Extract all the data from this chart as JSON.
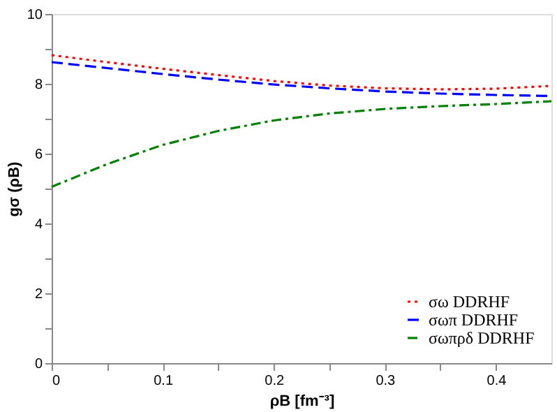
{
  "chart_data": {
    "type": "line",
    "xlabel": "ρB [fm⁻³]",
    "ylabel": "gσ (ρB)",
    "x": [
      0,
      0.05,
      0.1,
      0.15,
      0.2,
      0.25,
      0.3,
      0.35,
      0.4,
      0.45
    ],
    "xlim": [
      0,
      0.45
    ],
    "ylim": [
      0,
      10
    ],
    "xticks": [
      0,
      {
        "value": 0.05,
        "label": null
      },
      0.1,
      {
        "value": 0.15,
        "label": null
      },
      0.2,
      {
        "value": 0.25,
        "label": null
      },
      0.3,
      {
        "value": 0.35,
        "label": null
      },
      0.4
    ],
    "yticks": [
      0,
      {
        "value": 1,
        "label": null
      },
      2,
      {
        "value": 3,
        "label": null
      },
      4,
      {
        "value": 5,
        "label": null
      },
      6,
      {
        "value": 7,
        "label": null
      },
      8,
      {
        "value": 9,
        "label": null
      },
      10
    ],
    "grid": false,
    "legend": "bottom right",
    "marker": "none",
    "series": [
      {
        "name": "σω DDRHF",
        "color": "#ff0000",
        "line_style": "dotted",
        "values": [
          8.82,
          8.62,
          8.43,
          8.25,
          8.08,
          7.95,
          7.87,
          7.84,
          7.86,
          7.94
        ]
      },
      {
        "name": "σωπ DDRHF",
        "color": "#0000ff",
        "line_style": "dashed",
        "values": [
          8.62,
          8.45,
          8.28,
          8.12,
          7.98,
          7.87,
          7.78,
          7.72,
          7.68,
          7.65
        ]
      },
      {
        "name": "σωπρδ DDRHF",
        "color": "#008000",
        "line_style": "dashdot",
        "values": [
          5.05,
          5.7,
          6.25,
          6.65,
          6.95,
          7.15,
          7.28,
          7.36,
          7.42,
          7.5
        ]
      }
    ]
  }
}
